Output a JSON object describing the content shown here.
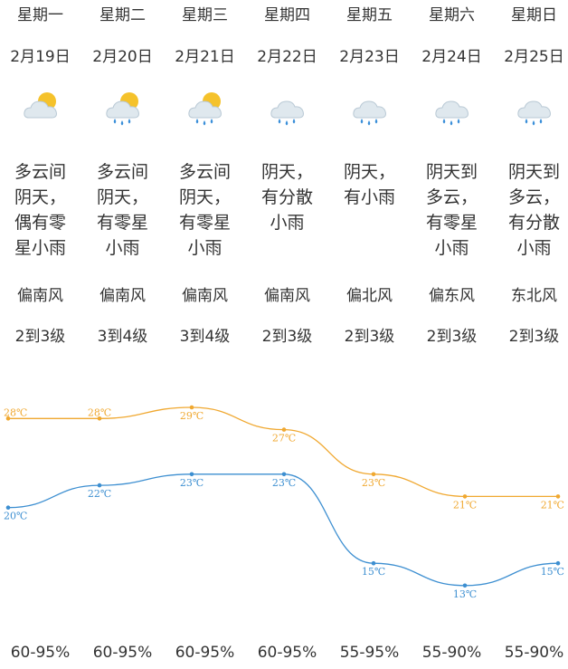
{
  "colors": {
    "high": "#f0a830",
    "low": "#3d8fd1",
    "text": "#333333",
    "sun": "#f5c22b",
    "cloud": "#dfe8ee",
    "rain": "#3a8fd9"
  },
  "days": [
    {
      "weekday": "星期一",
      "date": "2月19日",
      "icon": "sun-cloud-icon",
      "desc": [
        "多云间",
        "阴天，",
        "偶有零",
        "星小雨"
      ],
      "wind_dir": "偏南风",
      "wind_level": "2到3级",
      "humidity": "60-95%"
    },
    {
      "weekday": "星期二",
      "date": "2月20日",
      "icon": "sun-cloud-rain-icon",
      "desc": [
        "多云间",
        "阴天，",
        "有零星",
        "小雨"
      ],
      "wind_dir": "偏南风",
      "wind_level": "3到4级",
      "humidity": "60-95%"
    },
    {
      "weekday": "星期三",
      "date": "2月21日",
      "icon": "sun-cloud-rain-icon",
      "desc": [
        "多云间",
        "阴天，",
        "有零星",
        "小雨"
      ],
      "wind_dir": "偏南风",
      "wind_level": "3到4级",
      "humidity": "60-95%"
    },
    {
      "weekday": "星期四",
      "date": "2月22日",
      "icon": "cloud-rain-icon",
      "desc": [
        "阴天，",
        "有分散",
        "小雨"
      ],
      "wind_dir": "偏南风",
      "wind_level": "2到3级",
      "humidity": "60-95%"
    },
    {
      "weekday": "星期五",
      "date": "2月23日",
      "icon": "cloud-rain-icon",
      "desc": [
        "阴天，",
        "有小雨"
      ],
      "wind_dir": "偏北风",
      "wind_level": "2到3级",
      "humidity": "55-95%"
    },
    {
      "weekday": "星期六",
      "date": "2月24日",
      "icon": "cloud-rain-icon",
      "desc": [
        "阴天到",
        "多云，",
        "有零星",
        "小雨"
      ],
      "wind_dir": "偏东风",
      "wind_level": "2到3级",
      "humidity": "55-90%"
    },
    {
      "weekday": "星期日",
      "date": "2月25日",
      "icon": "cloud-rain-icon",
      "desc": [
        "阴天到",
        "多云，",
        "有分散",
        "小雨"
      ],
      "wind_dir": "东北风",
      "wind_level": "2到3级",
      "humidity": "55-90%"
    }
  ],
  "chart_data": {
    "type": "line",
    "categories": [
      "星期一",
      "星期二",
      "星期三",
      "星期四",
      "星期五",
      "星期六",
      "星期日"
    ],
    "series": [
      {
        "name": "high",
        "values": [
          28,
          28,
          29,
          27,
          23,
          21,
          21
        ],
        "labels": [
          "28℃",
          "28℃",
          "29℃",
          "27℃",
          "23℃",
          "21℃",
          "21℃"
        ]
      },
      {
        "name": "low",
        "values": [
          20,
          22,
          23,
          23,
          15,
          13,
          15
        ],
        "labels": [
          "20℃",
          "22℃",
          "23℃",
          "23℃",
          "15℃",
          "13℃",
          "15℃"
        ]
      }
    ],
    "ylim": [
      12,
      30
    ]
  }
}
